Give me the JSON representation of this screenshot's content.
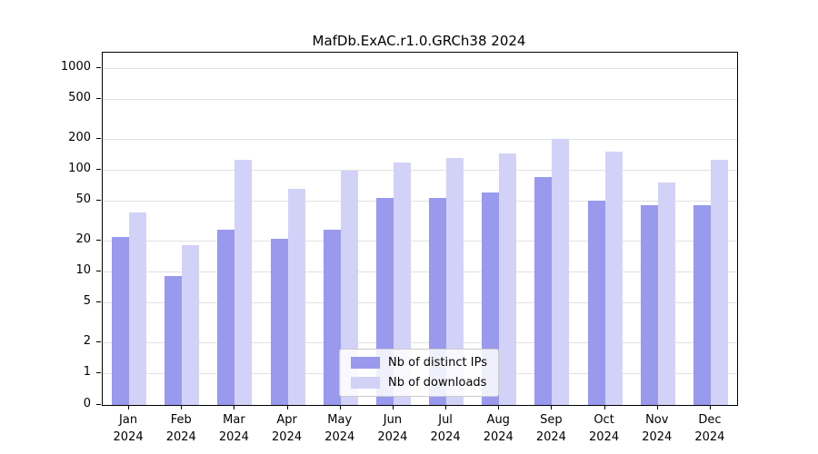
{
  "title": "MafDb.ExAC.r1.0.GRCh38 2024",
  "chart_data": {
    "type": "bar",
    "title": "MafDb.ExAC.r1.0.GRCh38 2024",
    "xlabel": "",
    "ylabel": "",
    "yscale": "log-like (0 at baseline, logarithmic above 1)",
    "yticks": [
      0,
      1,
      2,
      5,
      10,
      20,
      50,
      100,
      200,
      500,
      1000
    ],
    "ylim": [
      0,
      1400
    ],
    "grid": true,
    "legend_position": "bottom-center-inside",
    "categories": [
      "Jan 2024",
      "Feb 2024",
      "Mar 2024",
      "Apr 2024",
      "May 2024",
      "Jun 2024",
      "Jul 2024",
      "Aug 2024",
      "Sep 2024",
      "Oct 2024",
      "Nov 2024",
      "Dec 2024"
    ],
    "series": [
      {
        "name": "Nb of distinct IPs",
        "color": "#9999ee",
        "values": [
          22,
          9,
          26,
          21,
          26,
          53,
          53,
          60,
          85,
          50,
          45,
          45
        ]
      },
      {
        "name": "Nb of downloads",
        "color": "#d2d2f8",
        "values": [
          38,
          18,
          125,
          65,
          97,
          118,
          130,
          145,
          200,
          150,
          75,
          125
        ]
      }
    ]
  }
}
